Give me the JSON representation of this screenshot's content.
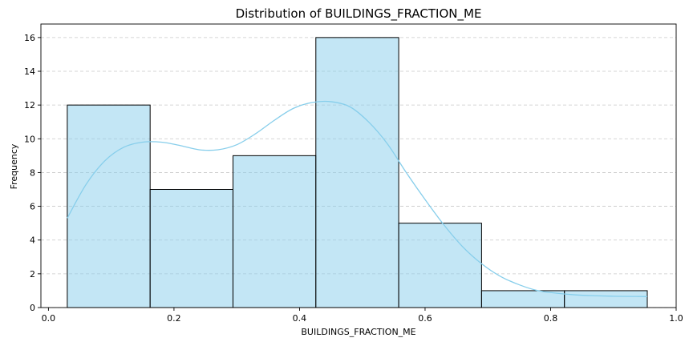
{
  "chart_data": {
    "type": "bar",
    "title": "Distribution of BUILDINGS_FRACTION_ME",
    "xlabel": "BUILDINGS_FRACTION_ME",
    "ylabel": "Frequency",
    "xlim": [
      -0.012,
      1.0
    ],
    "ylim": [
      0,
      16.8
    ],
    "xticks": [
      0.0,
      0.2,
      0.4,
      0.6,
      0.8,
      1.0
    ],
    "xtick_labels": [
      "0.0",
      "0.2",
      "0.4",
      "0.6",
      "0.8",
      "1.0"
    ],
    "yticks": [
      0,
      2,
      4,
      6,
      8,
      10,
      12,
      14,
      16
    ],
    "ytick_labels": [
      "0",
      "2",
      "4",
      "6",
      "8",
      "10",
      "12",
      "14",
      "16"
    ],
    "grid": "y-axis dashed",
    "bin_edges": [
      0.03,
      0.162,
      0.294,
      0.426,
      0.558,
      0.69,
      0.822,
      0.954
    ],
    "counts": [
      12,
      7,
      9,
      16,
      5,
      1,
      1
    ],
    "bar_color": "#87ceeb",
    "bar_opacity": 0.5,
    "kde_color": "#87ceeb",
    "kde": {
      "x": [
        0.03,
        0.06,
        0.09,
        0.12,
        0.15,
        0.18,
        0.21,
        0.24,
        0.27,
        0.3,
        0.33,
        0.36,
        0.39,
        0.42,
        0.45,
        0.48,
        0.51,
        0.54,
        0.57,
        0.6,
        0.63,
        0.66,
        0.69,
        0.72,
        0.75,
        0.78,
        0.81,
        0.84,
        0.87,
        0.9,
        0.93,
        0.954
      ],
      "y": [
        5.3,
        7.3,
        8.7,
        9.5,
        9.8,
        9.8,
        9.6,
        9.35,
        9.35,
        9.65,
        10.3,
        11.1,
        11.8,
        12.15,
        12.2,
        11.9,
        11.0,
        9.7,
        8.0,
        6.4,
        4.9,
        3.6,
        2.6,
        1.85,
        1.35,
        1.0,
        0.85,
        0.75,
        0.7,
        0.67,
        0.66,
        0.65
      ]
    }
  }
}
